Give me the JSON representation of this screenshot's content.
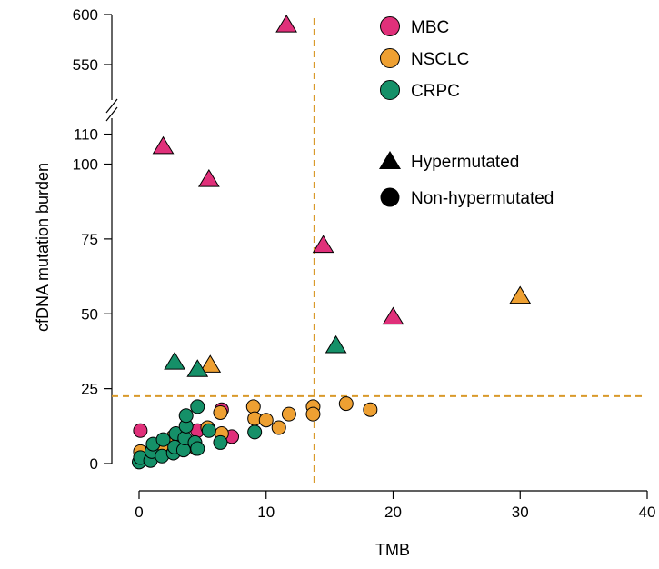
{
  "chart_data": {
    "type": "scatter",
    "xlabel": "TMB",
    "ylabel": "cfDNA mutation burden",
    "xlim": [
      0,
      40
    ],
    "x_ticks": [
      0,
      10,
      20,
      30,
      40
    ],
    "y_ticks_lower": [
      0,
      25,
      50,
      75,
      100,
      110
    ],
    "y_ticks_upper": [
      550,
      600
    ],
    "y_axis_break": [
      115,
      540
    ],
    "thresholds": {
      "x": 13.8,
      "y": 22.5,
      "color": "#d99a2b"
    },
    "series": [
      {
        "name": "MBC",
        "color": "#e0307a",
        "hypermutated": [
          [
            11.6,
            590
          ],
          [
            1.9,
            106
          ],
          [
            5.5,
            95
          ],
          [
            14.5,
            73
          ],
          [
            20.0,
            49
          ]
        ],
        "non_hypermutated": [
          [
            0.1,
            11
          ],
          [
            0.9,
            4
          ],
          [
            2.0,
            7
          ],
          [
            3.0,
            9
          ],
          [
            4.6,
            11
          ],
          [
            6.5,
            18
          ],
          [
            7.3,
            9
          ]
        ]
      },
      {
        "name": "NSCLC",
        "color": "#eea032",
        "hypermutated": [
          [
            5.6,
            33
          ],
          [
            30.0,
            56
          ]
        ],
        "non_hypermutated": [
          [
            0.1,
            4
          ],
          [
            0.8,
            2
          ],
          [
            1.8,
            6
          ],
          [
            2.7,
            9
          ],
          [
            3.5,
            7
          ],
          [
            4.5,
            5
          ],
          [
            5.4,
            12
          ],
          [
            6.4,
            17
          ],
          [
            6.5,
            10
          ],
          [
            9.0,
            19
          ],
          [
            9.1,
            15
          ],
          [
            10.0,
            14.5
          ],
          [
            11.0,
            12
          ],
          [
            11.8,
            16.5
          ],
          [
            13.7,
            19
          ],
          [
            13.7,
            16.5
          ],
          [
            16.3,
            20
          ],
          [
            18.2,
            18
          ]
        ]
      },
      {
        "name": "CRPC",
        "color": "#159068",
        "hypermutated": [
          [
            2.8,
            34
          ],
          [
            4.6,
            31.5
          ],
          [
            15.5,
            39.5
          ]
        ],
        "non_hypermutated": [
          [
            0.0,
            0.5
          ],
          [
            0.1,
            2.0
          ],
          [
            0.9,
            1.0
          ],
          [
            1.0,
            4.0
          ],
          [
            1.1,
            6.5
          ],
          [
            1.8,
            2.5
          ],
          [
            1.9,
            8.0
          ],
          [
            2.7,
            3.5
          ],
          [
            2.8,
            5.5
          ],
          [
            2.9,
            10.0
          ],
          [
            3.5,
            4.5
          ],
          [
            3.6,
            8.5
          ],
          [
            3.7,
            12.5
          ],
          [
            3.7,
            16.0
          ],
          [
            4.4,
            7.0
          ],
          [
            4.6,
            5.0
          ],
          [
            4.6,
            19.0
          ],
          [
            5.5,
            11.0
          ],
          [
            6.4,
            7.0
          ],
          [
            9.1,
            10.5
          ]
        ]
      }
    ],
    "legend": {
      "position": "top-right",
      "shape_entries": [
        {
          "label": "Hypermutated",
          "shape": "triangle"
        },
        {
          "label": "Non-hypermutated",
          "shape": "circle"
        }
      ]
    },
    "grid": false
  }
}
